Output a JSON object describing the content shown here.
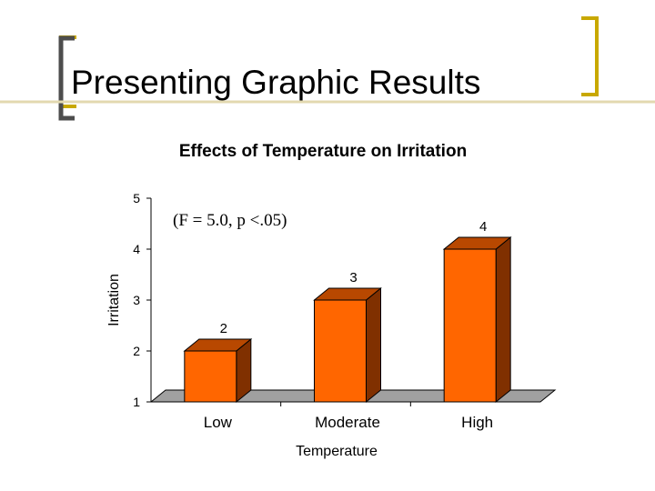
{
  "slide": {
    "title": "Presenting Graphic Results",
    "accent_color": "#C8A800"
  },
  "chart_data": {
    "type": "bar",
    "title": "Effects of Temperature on Irritation",
    "xlabel": "Temperature",
    "ylabel": "Irritation",
    "categories": [
      "Low",
      "Moderate",
      "High"
    ],
    "values": [
      2,
      3,
      4
    ],
    "data_labels": [
      "2",
      "3",
      "4"
    ],
    "ylim": [
      1,
      5
    ],
    "yticks": [
      "1",
      "2",
      "3",
      "4",
      "5"
    ],
    "annotation": "(F = 5.0, p <.05)",
    "grid": false,
    "style": "3d",
    "colors": {
      "bar_front": "#FF6600",
      "bar_side": "#803000",
      "bar_top": "#B84800",
      "floor": "#A0A0A0"
    }
  }
}
